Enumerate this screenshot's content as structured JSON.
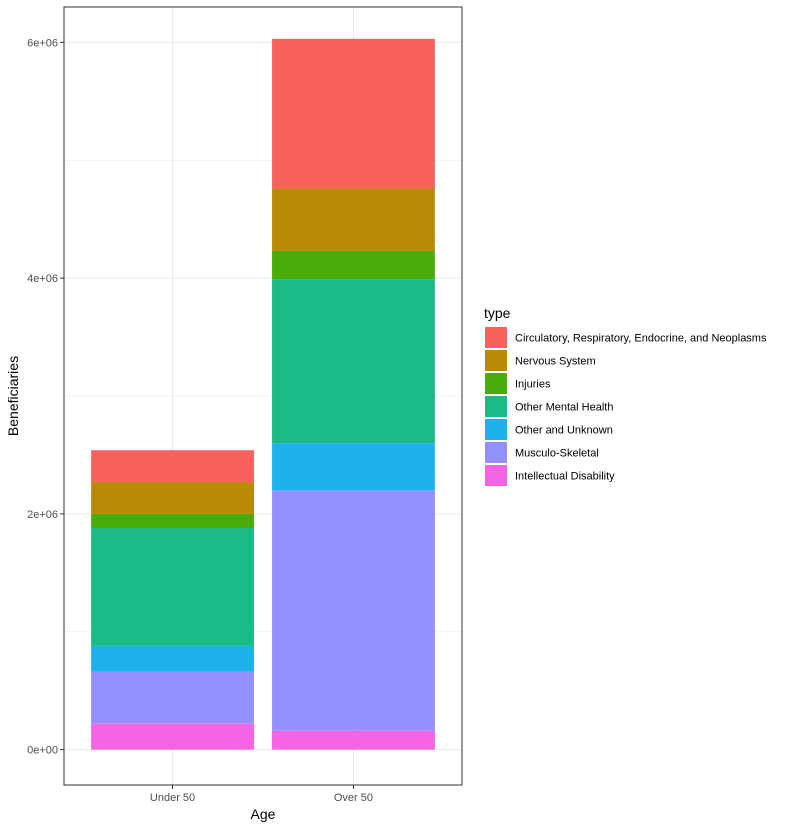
{
  "chart_data": {
    "type": "bar",
    "stacked": true,
    "title": "",
    "xlabel": "Age",
    "ylabel": "Beneficiaries",
    "categories": [
      "Under 50",
      "Over 50"
    ],
    "ylim": [
      -300000,
      6300000
    ],
    "yticks": [
      0,
      2000000,
      4000000,
      6000000
    ],
    "ytick_labels": [
      "0e+00",
      "2e+06",
      "4e+06",
      "6e+06"
    ],
    "grid": true,
    "legend_title": "type",
    "legend_position": "right",
    "series": [
      {
        "name": "Intellectual Disability",
        "color": "#F564E3",
        "values": [
          220000,
          160000
        ]
      },
      {
        "name": "Musculo-Skeletal",
        "color": "#9590FF",
        "values": [
          440000,
          2040000
        ]
      },
      {
        "name": "Other and Unknown",
        "color": "#1FB1EB",
        "values": [
          220000,
          400000
        ]
      },
      {
        "name": "Other Mental Health",
        "color": "#1CBA86",
        "values": [
          1000000,
          1390000
        ]
      },
      {
        "name": "Injuries",
        "color": "#49AC0A",
        "values": [
          120000,
          240000
        ]
      },
      {
        "name": "Nervous System",
        "color": "#B98A06",
        "values": [
          270000,
          530000
        ]
      },
      {
        "name": "Circulatory, Respiratory, Endocrine, and Neoplasms",
        "color": "#F8625C",
        "values": [
          270000,
          1270000
        ]
      }
    ],
    "legend_order": [
      "Circulatory, Respiratory, Endocrine, and Neoplasms",
      "Nervous System",
      "Injuries",
      "Other Mental Health",
      "Other and Unknown",
      "Musculo-Skeletal",
      "Intellectual Disability"
    ]
  }
}
